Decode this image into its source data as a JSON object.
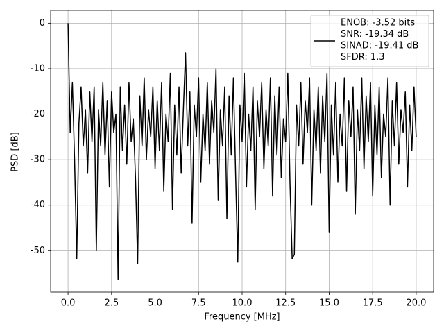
{
  "chart_data": {
    "type": "line",
    "xlabel": "Frequency [MHz]",
    "ylabel": "PSD [dB]",
    "x": [
      0,
      0.125,
      0.25,
      0.375,
      0.5,
      0.625,
      0.75,
      0.875,
      1,
      1.125,
      1.25,
      1.375,
      1.5,
      1.625,
      1.75,
      1.875,
      2,
      2.125,
      2.25,
      2.375,
      2.5,
      2.625,
      2.75,
      2.875,
      3,
      3.125,
      3.25,
      3.375,
      3.5,
      3.625,
      3.75,
      3.875,
      4,
      4.125,
      4.25,
      4.375,
      4.5,
      4.625,
      4.75,
      4.875,
      5,
      5.125,
      5.25,
      5.375,
      5.5,
      5.625,
      5.75,
      5.875,
      6,
      6.125,
      6.25,
      6.375,
      6.5,
      6.625,
      6.75,
      6.875,
      7,
      7.125,
      7.25,
      7.375,
      7.5,
      7.625,
      7.75,
      7.875,
      8,
      8.125,
      8.25,
      8.375,
      8.5,
      8.625,
      8.75,
      8.875,
      9,
      9.125,
      9.25,
      9.375,
      9.5,
      9.625,
      9.75,
      9.875,
      10,
      10.125,
      10.25,
      10.375,
      10.5,
      10.625,
      10.75,
      10.875,
      11,
      11.125,
      11.25,
      11.375,
      11.5,
      11.625,
      11.75,
      11.875,
      12,
      12.125,
      12.25,
      12.375,
      12.5,
      12.625,
      12.75,
      12.875,
      13,
      13.125,
      13.25,
      13.375,
      13.5,
      13.625,
      13.75,
      13.875,
      14,
      14.125,
      14.25,
      14.375,
      14.5,
      14.625,
      14.75,
      14.875,
      15,
      15.125,
      15.25,
      15.375,
      15.5,
      15.625,
      15.75,
      15.875,
      16,
      16.125,
      16.25,
      16.375,
      16.5,
      16.625,
      16.75,
      16.875,
      17,
      17.125,
      17.25,
      17.375,
      17.5,
      17.625,
      17.75,
      17.875,
      18,
      18.125,
      18.25,
      18.375,
      18.5,
      18.625,
      18.75,
      18.875,
      19,
      19.125,
      19.25,
      19.375,
      19.5,
      19.625,
      19.75,
      19.875,
      20
    ],
    "series": [
      {
        "name": [
          "ENOB: -3.52 bits",
          "SNR: -19.34 dB",
          "SINAD: -19.41 dB",
          "SFDR: 1.3"
        ],
        "color": "#000000",
        "values": [
          0,
          -24,
          -13,
          -30,
          -51.8,
          -22,
          -14,
          -27,
          -19,
          -33,
          -15,
          -26,
          -14,
          -50,
          -19,
          -27,
          -13,
          -29,
          -17,
          -36,
          -15,
          -24,
          -20,
          -56.3,
          -14,
          -28,
          -18,
          -31,
          -13,
          -26,
          -21,
          -34,
          -52.8,
          -16,
          -27,
          -12,
          -30,
          -19,
          -25,
          -14,
          -32,
          -17,
          -28,
          -13,
          -37,
          -20,
          -26,
          -11,
          -41,
          -18,
          -29,
          -14,
          -33,
          -19,
          -6.5,
          -27,
          -15,
          -44,
          -18,
          -25,
          -12,
          -35,
          -20,
          -28,
          -13,
          -31,
          -17,
          -24,
          -10,
          -39,
          -19,
          -27,
          -14,
          -43,
          -16,
          -29,
          -12,
          -33,
          -52.5,
          -18,
          -26,
          -11,
          -36,
          -20,
          -28,
          -14,
          -41,
          -17,
          -25,
          -13,
          -32,
          -19,
          -27,
          -12,
          -38,
          -16,
          -29,
          -14,
          -34,
          -21,
          -26,
          -11,
          -35,
          -51.8,
          -50.8,
          -18,
          -27,
          -13,
          -31,
          -17,
          -24,
          -12,
          -40,
          -19,
          -28,
          -14,
          -33,
          -16,
          -26,
          -11,
          -46,
          -18,
          -29,
          -13,
          -35,
          -20,
          -27,
          -12,
          -37,
          -17,
          -25,
          -14,
          -42,
          -19,
          -28,
          -12,
          -32,
          -16,
          -26,
          -13,
          -38,
          -18,
          -29,
          -14,
          -34,
          -20,
          -25,
          -12,
          -40,
          -17,
          -27,
          -13,
          -31,
          -19,
          -24,
          -15,
          -36,
          -18,
          -28,
          -14,
          -25
        ]
      }
    ],
    "xlim": [
      -1,
      21
    ],
    "xticks": [
      {
        "value": 0,
        "label": "0.0"
      },
      2.5,
      {
        "value": 5,
        "label": "5.0"
      },
      7.5,
      {
        "value": 10,
        "label": "10.0"
      },
      12.5,
      {
        "value": 15,
        "label": "15.0"
      },
      17.5,
      {
        "value": 20,
        "label": "20.0"
      }
    ],
    "ylim": [
      -59.1,
      2.8
    ],
    "yticks": [
      -50,
      -40,
      -30,
      -20,
      -10,
      0
    ],
    "grid": true,
    "legend": "upper right"
  }
}
